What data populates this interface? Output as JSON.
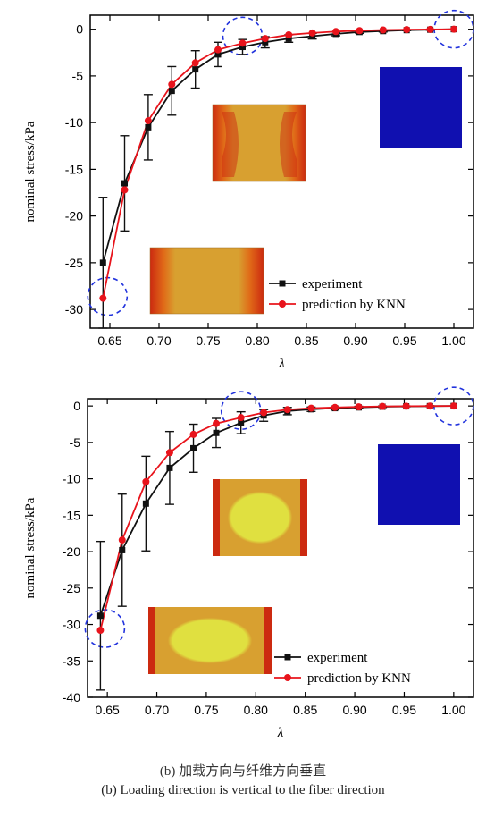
{
  "colors": {
    "experiment": "#111111",
    "prediction": "#e8141c",
    "highlight_circle": "#2233dd",
    "fem_blue": "#1010b0",
    "fem_orange": "#d8a030",
    "fem_red": "#cc2a10",
    "fem_yellow": "#d8d840"
  },
  "chart_data": [
    {
      "type": "line",
      "panel": "a",
      "xlabel": "λ",
      "ylabel": "nominal stress/kPa",
      "xlim": [
        0.63,
        1.02
      ],
      "ylim": [
        -32,
        1.5
      ],
      "xticks": [
        "0.65",
        "0.70",
        "0.75",
        "0.80",
        "0.85",
        "0.90",
        "0.95",
        "1.00"
      ],
      "yticks": [
        "0",
        "-5",
        "-10",
        "-15",
        "-20",
        "-25",
        "-30"
      ],
      "legend_position": "lower-right",
      "series": [
        {
          "name": "experiment",
          "marker": "square",
          "x": [
            0.643,
            0.665,
            0.689,
            0.713,
            0.737,
            0.76,
            0.785,
            0.808,
            0.832,
            0.856,
            0.88,
            0.904,
            0.928,
            0.952,
            0.976,
            1.0
          ],
          "y": [
            -25.0,
            -16.5,
            -10.5,
            -6.6,
            -4.3,
            -2.7,
            -1.9,
            -1.4,
            -1.0,
            -0.75,
            -0.5,
            -0.3,
            -0.2,
            -0.1,
            -0.05,
            0
          ],
          "error": [
            7.0,
            5.1,
            3.5,
            2.6,
            2.0,
            1.3,
            0.8,
            0.6,
            0.4,
            0.3,
            0.2,
            0.15,
            0.1,
            0.05,
            0.05,
            0
          ]
        },
        {
          "name": "prediction by KNN",
          "marker": "circle",
          "x": [
            0.643,
            0.665,
            0.689,
            0.713,
            0.737,
            0.76,
            0.785,
            0.808,
            0.832,
            0.856,
            0.88,
            0.904,
            0.928,
            0.952,
            0.976,
            1.0
          ],
          "y": [
            -28.8,
            -17.2,
            -9.8,
            -5.9,
            -3.6,
            -2.2,
            -1.5,
            -1.0,
            -0.6,
            -0.4,
            -0.25,
            -0.15,
            -0.08,
            -0.04,
            -0.02,
            0
          ]
        }
      ]
    },
    {
      "type": "line",
      "panel": "b",
      "xlabel": "λ",
      "ylabel": "nominal stress/kPa",
      "xlim": [
        0.63,
        1.02
      ],
      "ylim": [
        -40,
        1
      ],
      "xticks": [
        "0.65",
        "0.70",
        "0.75",
        "0.80",
        "0.85",
        "0.90",
        "0.95",
        "1.00"
      ],
      "yticks": [
        "0",
        "-5",
        "-10",
        "-15",
        "-20",
        "-25",
        "-30",
        "-35",
        "-40"
      ],
      "legend_position": "lower-right",
      "series": [
        {
          "name": "experiment",
          "marker": "square",
          "x": [
            0.643,
            0.665,
            0.689,
            0.713,
            0.737,
            0.76,
            0.785,
            0.808,
            0.832,
            0.856,
            0.88,
            0.904,
            0.928,
            0.952,
            0.976,
            1.0
          ],
          "y": [
            -28.8,
            -19.8,
            -13.4,
            -8.5,
            -5.8,
            -3.7,
            -2.3,
            -1.3,
            -0.7,
            -0.45,
            -0.3,
            -0.2,
            -0.1,
            -0.05,
            -0.02,
            0
          ],
          "error": [
            10.2,
            7.7,
            6.5,
            5.0,
            3.3,
            2.0,
            1.5,
            0.8,
            0.5,
            0.3,
            0.2,
            0.15,
            0.1,
            0.05,
            0.05,
            0
          ]
        },
        {
          "name": "prediction by KNN",
          "marker": "circle",
          "x": [
            0.643,
            0.665,
            0.689,
            0.713,
            0.737,
            0.76,
            0.785,
            0.808,
            0.832,
            0.856,
            0.88,
            0.904,
            0.928,
            0.952,
            0.976,
            1.0
          ],
          "y": [
            -30.8,
            -18.4,
            -10.4,
            -6.4,
            -3.9,
            -2.4,
            -1.6,
            -0.9,
            -0.5,
            -0.3,
            -0.2,
            -0.12,
            -0.06,
            -0.03,
            -0.01,
            0
          ]
        }
      ]
    }
  ],
  "captions": {
    "cn": "(b) 加载方向与纤维方向垂直",
    "en": "(b) Loading direction is vertical to the fiber direction"
  }
}
